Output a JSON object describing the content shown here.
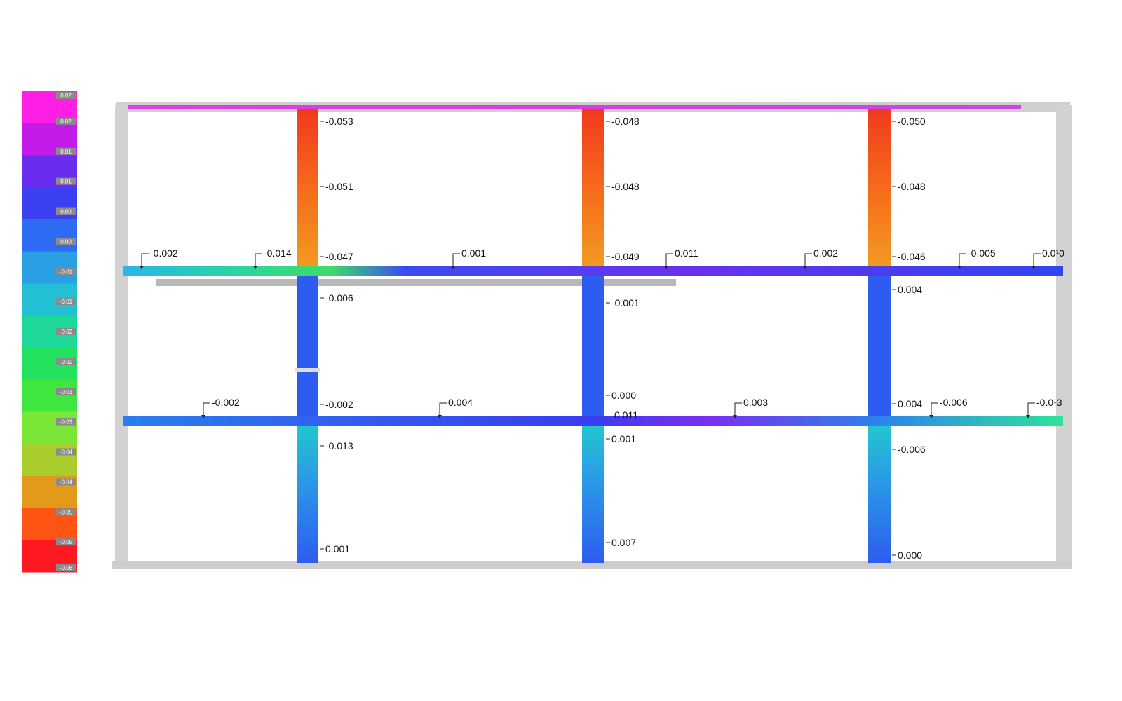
{
  "legend": {
    "ticks": [
      "0.02",
      "0.02",
      "0.01",
      "0.01",
      "0.00",
      "0.00",
      "-0.01",
      "-0.01",
      "-0.02",
      "-0.02",
      "-0.03",
      "-0.03",
      "-0.04",
      "-0.04",
      "-0.05",
      "-0.05",
      "-0.06"
    ],
    "bands": [
      "#ff1ee4",
      "#c31bea",
      "#6a2df0",
      "#3d3ff2",
      "#2d6cf2",
      "#2b9fe6",
      "#22c0d2",
      "#1ed89a",
      "#22e25e",
      "#3fe63e",
      "#7ae638",
      "#a9cd2c",
      "#e29a1a",
      "#ff5414",
      "#ff1a22"
    ]
  },
  "colors": {
    "frame": "#c7c7c7",
    "beam": "#3048ea",
    "column_upper": "#f4661c",
    "column_lower": "#2e5cf0",
    "label": "#111111"
  },
  "upper_columns": [
    {
      "name": "left",
      "labels": [
        "-0.053",
        "-0.051",
        "-0.047"
      ]
    },
    {
      "name": "center",
      "labels": [
        "-0.048",
        "-0.048",
        "-0.049"
      ]
    },
    {
      "name": "right",
      "labels": [
        "-0.050",
        "-0.048",
        "-0.046"
      ]
    }
  ],
  "middle_columns": [
    {
      "name": "left",
      "labels": [
        "-0.006",
        "-0.002"
      ]
    },
    {
      "name": "center",
      "labels": [
        "-0.001",
        "0.000"
      ]
    },
    {
      "name": "right",
      "labels": [
        "0.004",
        "0.004"
      ]
    }
  ],
  "lower_columns": [
    {
      "name": "left",
      "labels": [
        "-0.013",
        "0.001"
      ]
    },
    {
      "name": "center",
      "labels": [
        "0.001",
        "0.007"
      ]
    },
    {
      "name": "right",
      "labels": [
        "-0.006",
        "0.000"
      ]
    }
  ],
  "upper_beam_labels": [
    "-0.002",
    "-0.014",
    "0.001",
    "0.011",
    "0.002",
    "-0.005",
    "0.0¹0"
  ],
  "lower_beam_labels": [
    "-0.002",
    "0.004",
    "0.003",
    "-0.006",
    "-0.0¹3"
  ],
  "lower_beam_center_label": "0.011"
}
